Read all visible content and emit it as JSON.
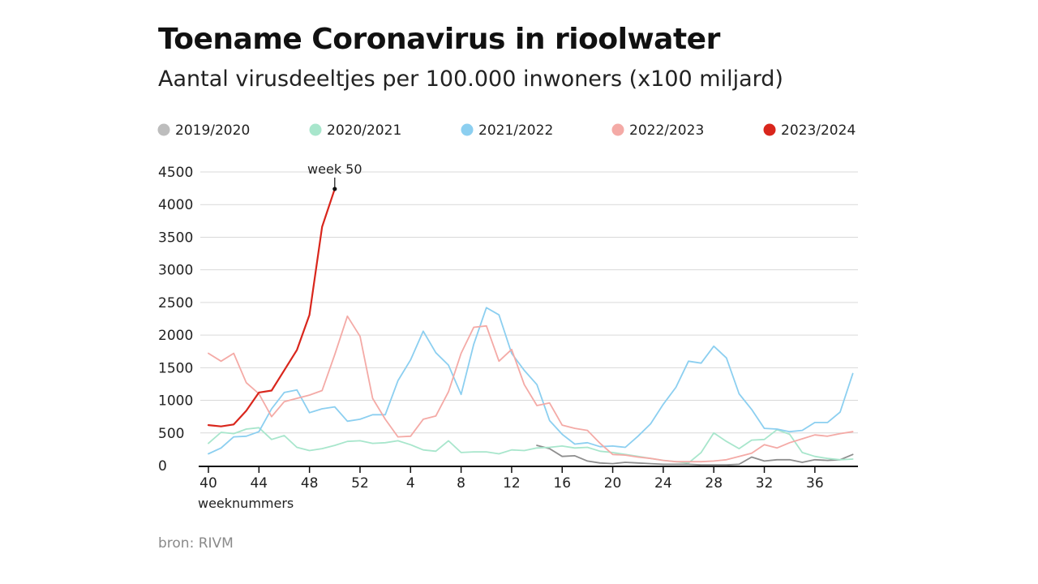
{
  "chart_data": {
    "type": "line",
    "title": "Toename Coronavirus in rioolwater",
    "subtitle": "Aantal virusdeeltjes per 100.000 inwoners (x100 miljard)",
    "xlabel": "weeknummers",
    "ylabel": "",
    "source": "bron: RIVM",
    "ylim": [
      0,
      4500
    ],
    "yticks": [
      0,
      500,
      1000,
      1500,
      2000,
      2500,
      3000,
      3500,
      4000,
      4500
    ],
    "x_positions": [
      0,
      1,
      2,
      3,
      4,
      5,
      6,
      7,
      8,
      9,
      10,
      11,
      12,
      13,
      14,
      15,
      16,
      17,
      18,
      19,
      20,
      21,
      22,
      23,
      24,
      25,
      26,
      27,
      28,
      29,
      30,
      31,
      32,
      33,
      34,
      35,
      36,
      37,
      38,
      39,
      40,
      41,
      42,
      43,
      44,
      45,
      46,
      47,
      48,
      49,
      50,
      51
    ],
    "x_week_numbers": [
      40,
      41,
      42,
      43,
      44,
      45,
      46,
      47,
      48,
      49,
      50,
      51,
      52,
      1,
      2,
      3,
      4,
      5,
      6,
      7,
      8,
      9,
      10,
      11,
      12,
      13,
      14,
      15,
      16,
      17,
      18,
      19,
      20,
      21,
      22,
      23,
      24,
      25,
      26,
      27,
      28,
      29,
      30,
      31,
      32,
      33,
      34,
      35,
      36,
      37,
      38,
      39
    ],
    "xticks": [
      {
        "pos": 0,
        "label": "40"
      },
      {
        "pos": 4,
        "label": "44"
      },
      {
        "pos": 8,
        "label": "48"
      },
      {
        "pos": 12,
        "label": "52"
      },
      {
        "pos": 16,
        "label": "4"
      },
      {
        "pos": 20,
        "label": "8"
      },
      {
        "pos": 24,
        "label": "12"
      },
      {
        "pos": 28,
        "label": "16"
      },
      {
        "pos": 32,
        "label": "20"
      },
      {
        "pos": 36,
        "label": "24"
      },
      {
        "pos": 40,
        "label": "28"
      },
      {
        "pos": 44,
        "label": "32"
      },
      {
        "pos": 48,
        "label": "36"
      }
    ],
    "grid": true,
    "legend_position": "top",
    "series": [
      {
        "name": "2019/2020",
        "color": "#8e8e8e",
        "legend_color": "#bdbdbd",
        "start_pos": 26,
        "values": [
          310,
          260,
          140,
          150,
          70,
          40,
          30,
          50,
          40,
          30,
          20,
          20,
          20,
          10,
          10,
          10,
          20,
          130,
          70,
          90,
          90,
          50,
          90,
          80,
          90,
          170
        ]
      },
      {
        "name": "2020/2021",
        "color": "#a8e6cc",
        "legend_color": "#a8e6cc",
        "start_pos": 0,
        "values": [
          340,
          510,
          490,
          560,
          580,
          400,
          460,
          280,
          230,
          260,
          310,
          370,
          380,
          340,
          350,
          380,
          320,
          240,
          220,
          380,
          200,
          210,
          210,
          180,
          240,
          230,
          270,
          280,
          300,
          270,
          280,
          220,
          200,
          170,
          140,
          110,
          80,
          60,
          40,
          200,
          500,
          370,
          260,
          390,
          400,
          550,
          480,
          200,
          140,
          110,
          90,
          100
        ]
      },
      {
        "name": "2021/2022",
        "color": "#8ccff0",
        "legend_color": "#8ccff0",
        "start_pos": 0,
        "values": [
          180,
          270,
          440,
          450,
          520,
          870,
          1120,
          1160,
          810,
          870,
          900,
          680,
          710,
          780,
          780,
          1300,
          1620,
          2060,
          1730,
          1540,
          1090,
          1860,
          2420,
          2310,
          1720,
          1460,
          1240,
          690,
          480,
          330,
          350,
          290,
          300,
          280,
          450,
          640,
          940,
          1200,
          1600,
          1570,
          1830,
          1650,
          1100,
          860,
          570,
          560,
          520,
          540,
          660,
          660,
          820,
          1410
        ]
      },
      {
        "name": "2022/2023",
        "color": "#f4aaa6",
        "legend_color": "#f4aaa6",
        "start_pos": 0,
        "values": [
          1720,
          1600,
          1720,
          1270,
          1100,
          750,
          980,
          1030,
          1080,
          1150,
          1700,
          2290,
          1980,
          1030,
          710,
          440,
          450,
          710,
          760,
          1130,
          1720,
          2120,
          2140,
          1600,
          1780,
          1240,
          920,
          960,
          620,
          570,
          540,
          340,
          170,
          160,
          130,
          110,
          80,
          60,
          60,
          60,
          70,
          90,
          140,
          190,
          320,
          270,
          350,
          410,
          470,
          450,
          490,
          520
        ]
      },
      {
        "name": "2023/2024",
        "color": "#d9261c",
        "legend_color": "#d9261c",
        "start_pos": 0,
        "values": [
          620,
          600,
          630,
          840,
          1120,
          1150,
          1460,
          1770,
          2310,
          3660,
          4240
        ]
      }
    ],
    "annotations": [
      {
        "text": "week 50",
        "pos": 10,
        "value": 4240
      }
    ]
  }
}
